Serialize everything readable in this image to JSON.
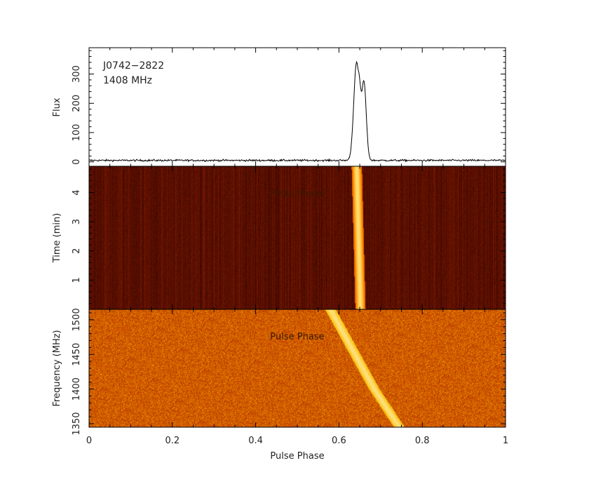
{
  "chart_data": [
    {
      "type": "line",
      "panel": "profile",
      "annotation": [
        "J0742−2822",
        "1408 MHz"
      ],
      "ylabel": "Flux",
      "xlabel": "",
      "xlim": [
        0,
        1
      ],
      "ylim": [
        -15,
        390
      ],
      "yticks": [
        "0",
        "100",
        "200",
        "300"
      ],
      "baseline": 5,
      "components": [
        {
          "center": 0.642,
          "amplitude": 330,
          "width": 0.0065
        },
        {
          "center": 0.66,
          "amplitude": 265,
          "width": 0.0055
        },
        {
          "center": 0.65,
          "amplitude": 70,
          "width": 0.003
        }
      ],
      "peak": {
        "x": 0.642,
        "y": 372
      },
      "color": "#000000"
    },
    {
      "type": "heatmap",
      "panel": "time-phase",
      "ylabel": "Time (min)",
      "xlabel": "",
      "inner_label": "Pulse Phase",
      "xlim": [
        0,
        1
      ],
      "ylim": [
        0,
        4.9
      ],
      "yticks": [
        "1",
        "2",
        "3",
        "4"
      ],
      "pulse_track": {
        "time_min": [
          0,
          4.9
        ],
        "phase_center": [
          0.652,
          0.643
        ],
        "width": 0.02
      },
      "colormap": [
        "#3d0700",
        "#b52a00",
        "#ff8c00",
        "#ffe070"
      ]
    },
    {
      "type": "heatmap",
      "panel": "frequency-phase",
      "ylabel": "Frequency (MHz)",
      "xlabel": "Pulse Phase",
      "inner_label": "Pulse Phase",
      "xlim": [
        0,
        1
      ],
      "ylim": [
        1345,
        1515
      ],
      "xticks": [
        "0",
        "0.2",
        "0.4",
        "0.6",
        "0.8",
        "1"
      ],
      "yticks": [
        "1350",
        "1400",
        "1450",
        "1500"
      ],
      "dispersion_track": {
        "frequency_mhz": [
          1345,
          1400,
          1515
        ],
        "phase_center": [
          0.745,
          0.685,
          0.58
        ],
        "width": 0.02
      },
      "colormap": [
        "#9a2200",
        "#d55a00",
        "#f7c000",
        "#ffe080"
      ]
    }
  ]
}
